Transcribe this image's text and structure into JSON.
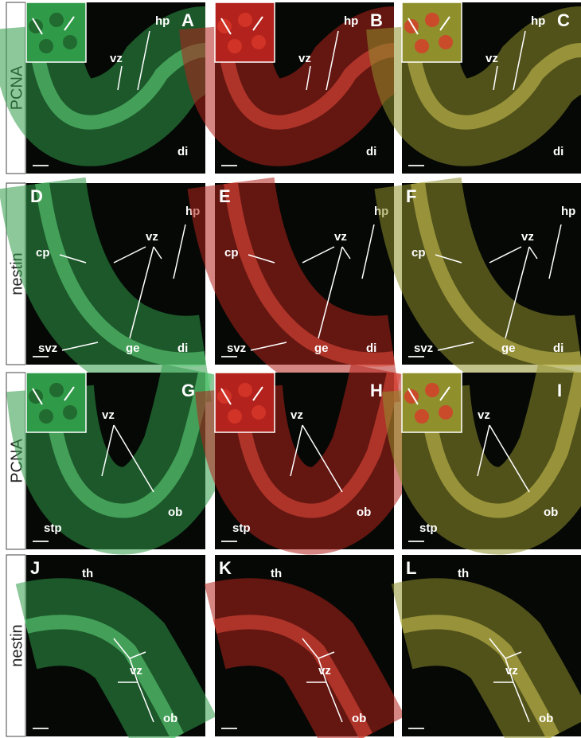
{
  "rows": [
    {
      "label": "PCNA",
      "panels": [
        {
          "letter": "A",
          "labels": [
            "vz",
            "hp",
            "di"
          ]
        },
        {
          "letter": "B",
          "labels": [
            "vz",
            "hp",
            "di"
          ]
        },
        {
          "letter": "C",
          "labels": [
            "vz",
            "hp",
            "di"
          ]
        }
      ]
    },
    {
      "label": "nestin",
      "panels": [
        {
          "letter": "D",
          "labels": [
            "hp",
            "vz",
            "cp",
            "svz",
            "ge",
            "di"
          ]
        },
        {
          "letter": "E",
          "labels": [
            "hp",
            "vz",
            "cp",
            "svz",
            "ge",
            "di"
          ]
        },
        {
          "letter": "F",
          "labels": [
            "hp",
            "vz",
            "cp",
            "svz",
            "ge",
            "di"
          ]
        }
      ]
    },
    {
      "label": "PCNA",
      "panels": [
        {
          "letter": "G",
          "labels": [
            "vz",
            "stp",
            "ob"
          ]
        },
        {
          "letter": "H",
          "labels": [
            "vz",
            "stp",
            "ob"
          ]
        },
        {
          "letter": "I",
          "labels": [
            "vz",
            "stp",
            "ob"
          ]
        }
      ]
    },
    {
      "label": "nestin",
      "panels": [
        {
          "letter": "J",
          "labels": [
            "th",
            "vz",
            "ob"
          ]
        },
        {
          "letter": "K",
          "labels": [
            "th",
            "vz",
            "ob"
          ]
        },
        {
          "letter": "L",
          "labels": [
            "th",
            "vz",
            "ob"
          ]
        }
      ]
    }
  ]
}
